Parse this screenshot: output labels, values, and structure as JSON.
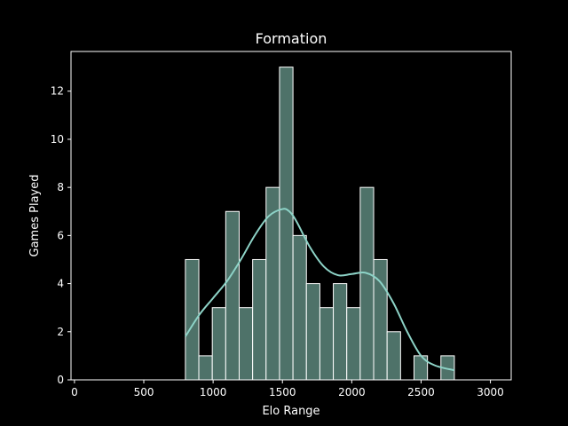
{
  "chart_data": {
    "type": "bar",
    "title": "Formation",
    "xlabel": "Elo Range",
    "ylabel": "Games Played",
    "xlim": [
      -25,
      3150
    ],
    "ylim": [
      0,
      13.65
    ],
    "xticks": [
      0,
      500,
      1000,
      1500,
      2000,
      2500,
      3000
    ],
    "yticks": [
      0,
      2,
      4,
      6,
      8,
      10,
      12
    ],
    "bin_width": 97,
    "bins": [
      {
        "start": 800,
        "end": 897,
        "value": 5
      },
      {
        "start": 897,
        "end": 994,
        "value": 1
      },
      {
        "start": 994,
        "end": 1091,
        "value": 3
      },
      {
        "start": 1091,
        "end": 1188,
        "value": 7
      },
      {
        "start": 1188,
        "end": 1285,
        "value": 3
      },
      {
        "start": 1285,
        "end": 1382,
        "value": 5
      },
      {
        "start": 1382,
        "end": 1479,
        "value": 8
      },
      {
        "start": 1479,
        "end": 1576,
        "value": 13
      },
      {
        "start": 1576,
        "end": 1673,
        "value": 6
      },
      {
        "start": 1673,
        "end": 1770,
        "value": 4
      },
      {
        "start": 1770,
        "end": 1867,
        "value": 3
      },
      {
        "start": 1867,
        "end": 1964,
        "value": 4
      },
      {
        "start": 1964,
        "end": 2061,
        "value": 3
      },
      {
        "start": 2061,
        "end": 2158,
        "value": 8
      },
      {
        "start": 2158,
        "end": 2255,
        "value": 5
      },
      {
        "start": 2255,
        "end": 2352,
        "value": 2
      },
      {
        "start": 2352,
        "end": 2449,
        "value": 0
      },
      {
        "start": 2449,
        "end": 2546,
        "value": 1
      },
      {
        "start": 2546,
        "end": 2643,
        "value": 0
      },
      {
        "start": 2643,
        "end": 2740,
        "value": 1
      }
    ],
    "kde": {
      "x": [
        800,
        900,
        1000,
        1100,
        1200,
        1300,
        1400,
        1500,
        1550,
        1600,
        1700,
        1800,
        1900,
        2000,
        2100,
        2200,
        2300,
        2400,
        2500,
        2600,
        2740
      ],
      "y": [
        1.8,
        2.7,
        3.4,
        4.1,
        5.0,
        6.0,
        6.8,
        7.1,
        7.0,
        6.6,
        5.5,
        4.7,
        4.35,
        4.4,
        4.45,
        4.1,
        3.2,
        2.0,
        1.0,
        0.6,
        0.4
      ]
    },
    "colors": {
      "bar_fill": "#4e7269",
      "bar_edge": "#ffffff",
      "kde_line": "#8dd3c7",
      "background": "#000000",
      "foreground": "#ffffff"
    }
  }
}
